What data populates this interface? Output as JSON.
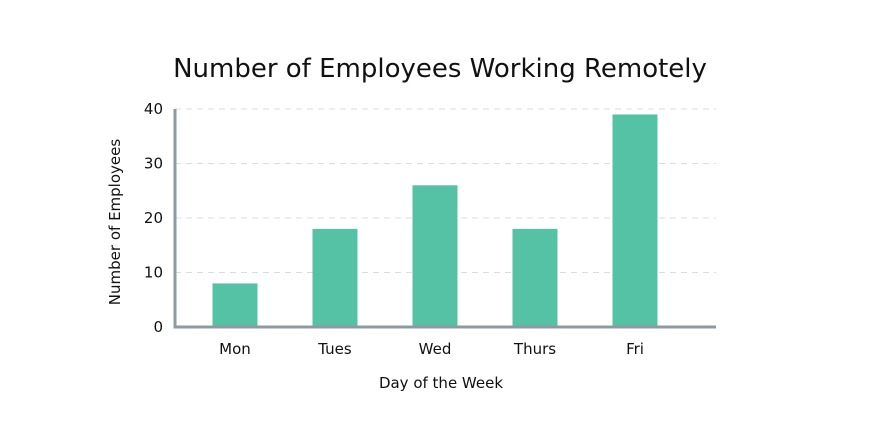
{
  "colors": {
    "bar": "#55c2a6",
    "axis": "#8e9aa2",
    "grid": "#d9dde0",
    "text": "#111111"
  },
  "chart_data": {
    "type": "bar",
    "title": "Number of Employees Working Remotely",
    "xlabel": "Day of the Week",
    "ylabel": "Number of Employees",
    "categories": [
      "Mon",
      "Tues",
      "Wed",
      "Thurs",
      "Fri"
    ],
    "values": [
      8,
      18,
      26,
      18,
      39
    ],
    "ylim": [
      0,
      40
    ],
    "yticks": [
      0,
      10,
      20,
      30,
      40
    ],
    "grid": true,
    "legend": "none"
  }
}
